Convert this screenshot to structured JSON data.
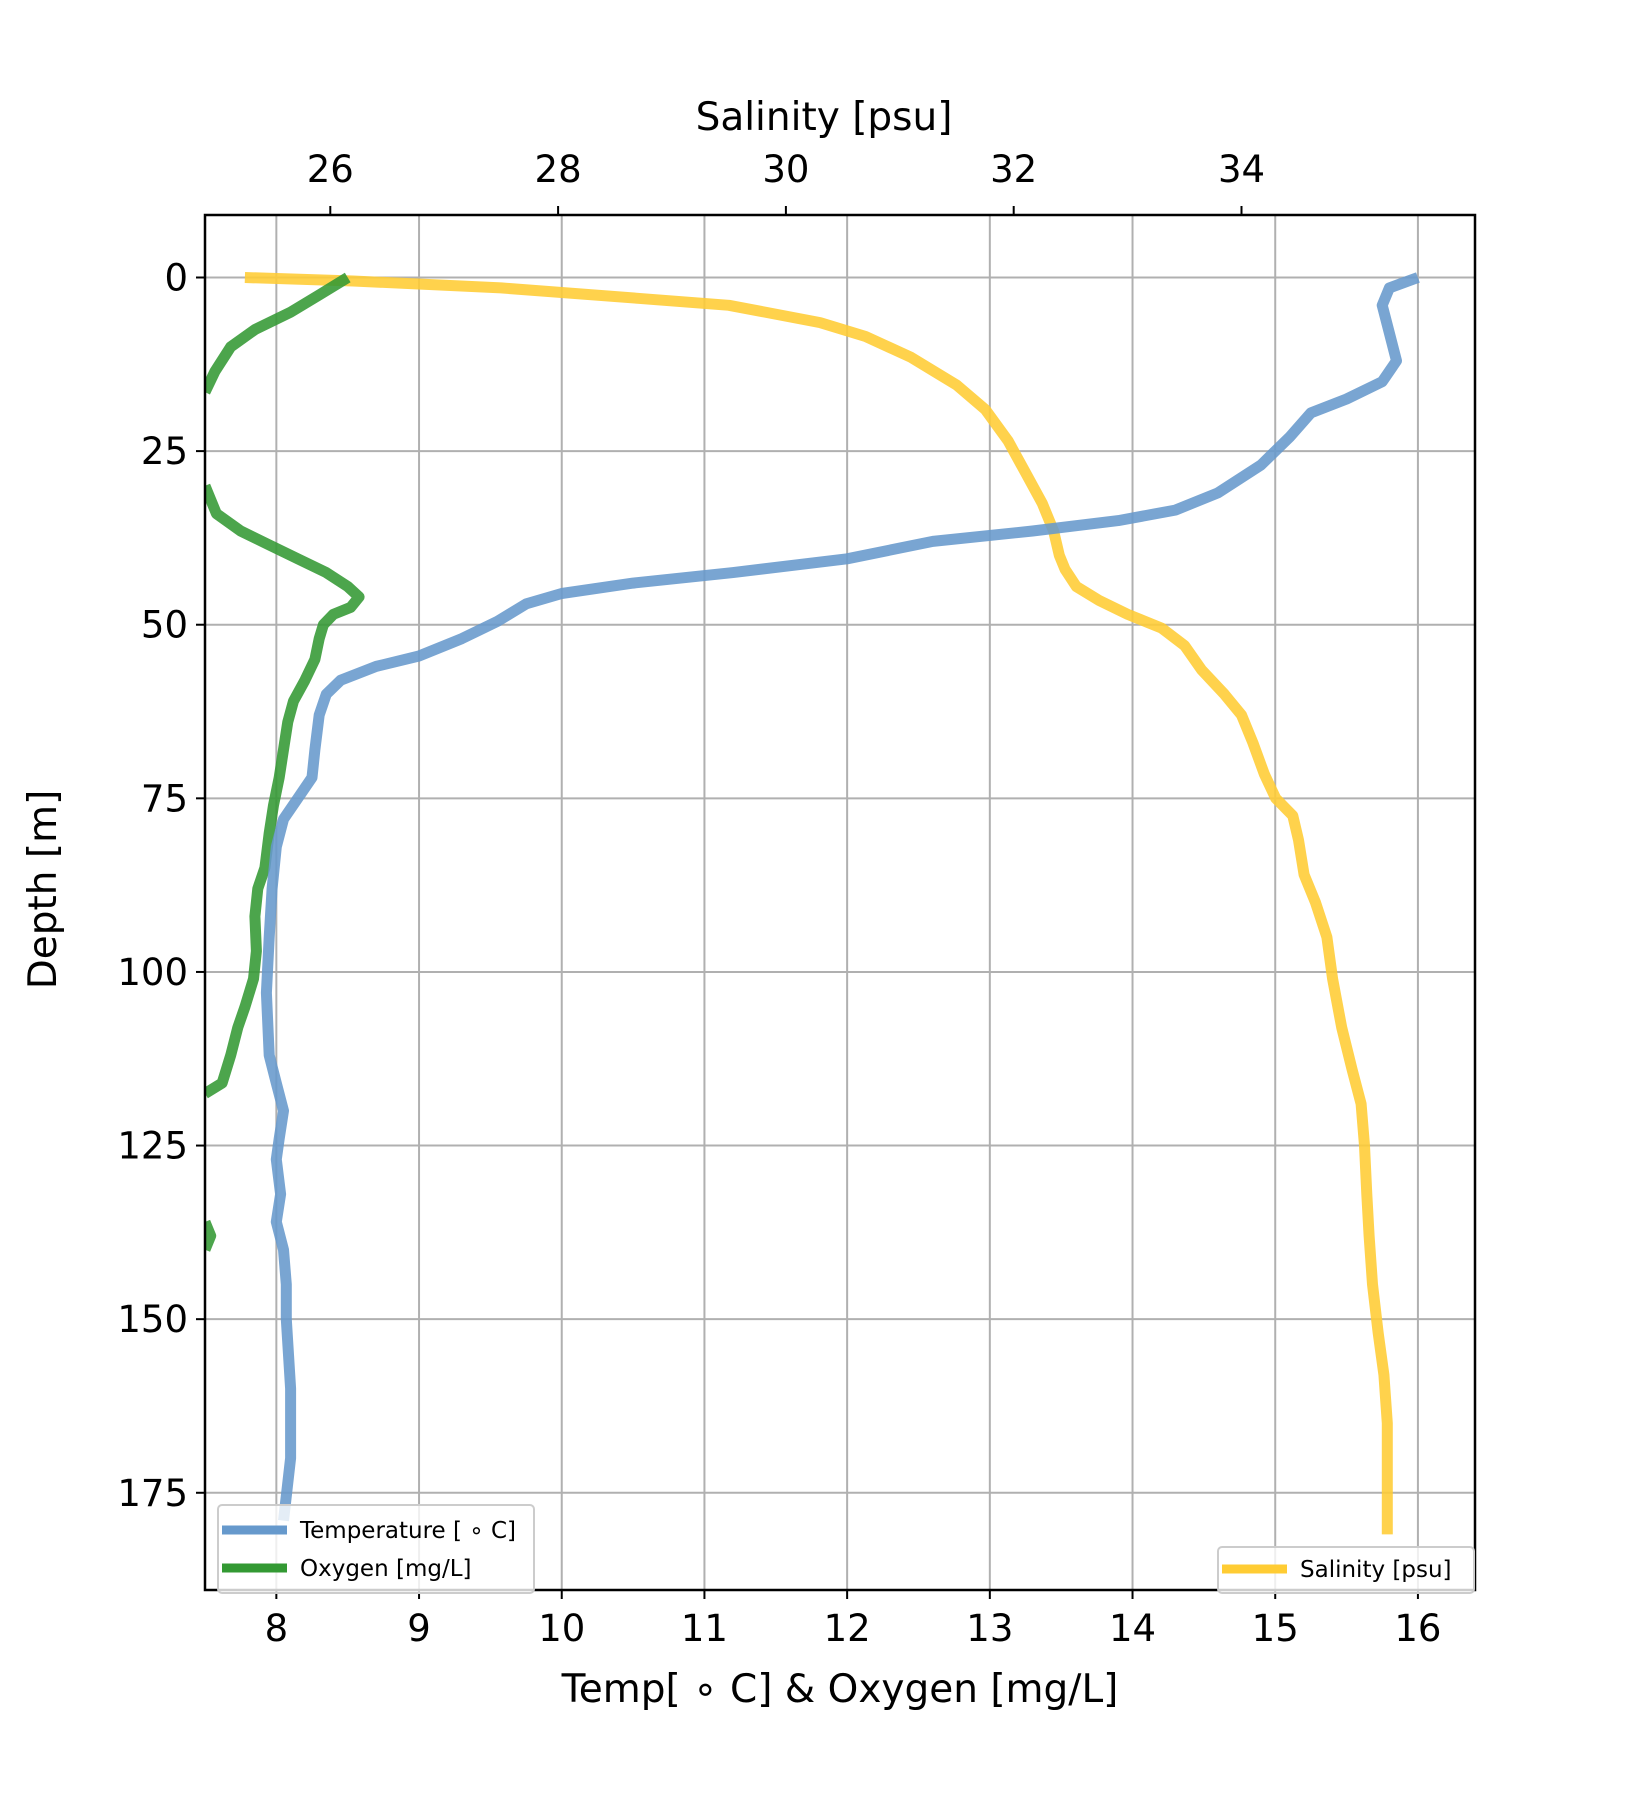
{
  "chart_data": {
    "type": "line",
    "xlabel": "Temp[ ∘ C] & Oxygen [mg/L]",
    "xlabel_top": "Salinity [psu]",
    "ylabel": "Depth [m]",
    "xlim": [
      7.5,
      16.4
    ],
    "xlim_top": [
      24.9,
      36.05
    ],
    "ylim": [
      189,
      -9
    ],
    "x_ticks": [
      8,
      9,
      10,
      11,
      12,
      13,
      14,
      15,
      16
    ],
    "x_ticks_top": [
      26,
      28,
      30,
      32,
      34
    ],
    "y_ticks": [
      0,
      25,
      50,
      75,
      100,
      125,
      150,
      175
    ],
    "grid": true,
    "legends": [
      {
        "placement": "lower-left",
        "entries": [
          "Temperature [ ∘ C]",
          "Oxygen [mg/L]"
        ]
      },
      {
        "placement": "lower-right",
        "entries": [
          "Salinity [psu]"
        ]
      }
    ],
    "series": [
      {
        "name": "Temperature [ ∘ C]",
        "axis": "bottom",
        "color": "#6699cc",
        "points": [
          [
            16.0,
            0
          ],
          [
            15.8,
            1.5
          ],
          [
            15.75,
            4
          ],
          [
            15.8,
            8
          ],
          [
            15.85,
            12
          ],
          [
            15.75,
            15
          ],
          [
            15.5,
            17.5
          ],
          [
            15.25,
            19.5
          ],
          [
            15.1,
            23
          ],
          [
            14.9,
            27
          ],
          [
            14.6,
            31
          ],
          [
            14.3,
            33.5
          ],
          [
            13.9,
            35
          ],
          [
            13.3,
            36.5
          ],
          [
            12.6,
            38
          ],
          [
            12.0,
            40.5
          ],
          [
            11.2,
            42.5
          ],
          [
            10.5,
            44
          ],
          [
            10.0,
            45.5
          ],
          [
            9.75,
            47
          ],
          [
            9.55,
            49.5
          ],
          [
            9.3,
            52
          ],
          [
            9.0,
            54.5
          ],
          [
            8.7,
            56
          ],
          [
            8.45,
            58
          ],
          [
            8.35,
            60
          ],
          [
            8.3,
            63
          ],
          [
            8.27,
            68
          ],
          [
            8.25,
            72
          ],
          [
            8.15,
            75
          ],
          [
            8.05,
            78
          ],
          [
            8.0,
            82
          ],
          [
            7.97,
            88
          ],
          [
            7.95,
            95
          ],
          [
            7.93,
            103
          ],
          [
            7.95,
            112
          ],
          [
            8.0,
            116
          ],
          [
            8.05,
            120
          ],
          [
            8.02,
            124
          ],
          [
            8.0,
            127
          ],
          [
            8.03,
            132
          ],
          [
            8.0,
            136
          ],
          [
            8.05,
            140
          ],
          [
            8.07,
            145
          ],
          [
            8.07,
            150
          ],
          [
            8.1,
            160
          ],
          [
            8.1,
            170
          ],
          [
            8.05,
            179
          ]
        ]
      },
      {
        "name": "Oxygen [mg/L]",
        "axis": "bottom",
        "color": "#339933",
        "segments": [
          [
            [
              8.5,
              0
            ],
            [
              8.3,
              2.5
            ],
            [
              8.1,
              5
            ],
            [
              7.85,
              7.5
            ],
            [
              7.68,
              10
            ],
            [
              7.57,
              13.5
            ],
            [
              7.5,
              16.5
            ]
          ],
          [
            [
              7.5,
              30
            ],
            [
              7.58,
              34
            ],
            [
              7.75,
              36.5
            ],
            [
              7.95,
              38.5
            ],
            [
              8.15,
              40.5
            ],
            [
              8.35,
              42.5
            ],
            [
              8.5,
              44.5
            ],
            [
              8.58,
              46
            ],
            [
              8.52,
              47.5
            ],
            [
              8.4,
              48.5
            ],
            [
              8.33,
              50
            ],
            [
              8.3,
              52
            ],
            [
              8.27,
              55
            ],
            [
              8.2,
              58
            ],
            [
              8.12,
              61
            ],
            [
              8.08,
              64
            ],
            [
              8.05,
              68
            ],
            [
              8.02,
              72
            ],
            [
              7.98,
              76
            ],
            [
              7.95,
              80
            ],
            [
              7.92,
              85
            ],
            [
              7.87,
              88
            ],
            [
              7.85,
              92
            ],
            [
              7.86,
              97
            ],
            [
              7.84,
              101
            ],
            [
              7.78,
              105
            ],
            [
              7.73,
              108
            ],
            [
              7.68,
              112
            ],
            [
              7.62,
              116
            ],
            [
              7.5,
              117.5
            ]
          ],
          [
            [
              7.5,
              136
            ],
            [
              7.54,
              138
            ],
            [
              7.5,
              140
            ]
          ]
        ]
      },
      {
        "name": "Salinity [psu]",
        "axis": "top",
        "color": "#ffcc33",
        "points": [
          [
            25.25,
            0
          ],
          [
            26.2,
            0.5
          ],
          [
            27.5,
            1.5
          ],
          [
            28.7,
            3
          ],
          [
            29.5,
            4
          ],
          [
            30.3,
            6.5
          ],
          [
            30.7,
            8.5
          ],
          [
            31.1,
            11.5
          ],
          [
            31.5,
            15.5
          ],
          [
            31.75,
            19
          ],
          [
            31.95,
            23.5
          ],
          [
            32.1,
            28
          ],
          [
            32.25,
            32.5
          ],
          [
            32.35,
            36.5
          ],
          [
            32.4,
            40
          ],
          [
            32.45,
            42
          ],
          [
            32.55,
            44.5
          ],
          [
            32.75,
            46.5
          ],
          [
            33.0,
            48.5
          ],
          [
            33.3,
            50.5
          ],
          [
            33.5,
            53
          ],
          [
            33.65,
            56.5
          ],
          [
            33.85,
            60
          ],
          [
            34.0,
            63
          ],
          [
            34.1,
            67
          ],
          [
            34.2,
            71.5
          ],
          [
            34.3,
            75
          ],
          [
            34.45,
            77.5
          ],
          [
            34.5,
            81
          ],
          [
            34.55,
            86
          ],
          [
            34.65,
            90
          ],
          [
            34.75,
            95
          ],
          [
            34.8,
            101
          ],
          [
            34.88,
            108
          ],
          [
            34.97,
            114
          ],
          [
            35.05,
            119
          ],
          [
            35.08,
            125
          ],
          [
            35.1,
            132
          ],
          [
            35.12,
            138
          ],
          [
            35.15,
            145
          ],
          [
            35.2,
            152
          ],
          [
            35.25,
            158
          ],
          [
            35.28,
            165
          ],
          [
            35.28,
            172
          ],
          [
            35.28,
            181
          ]
        ]
      }
    ]
  }
}
